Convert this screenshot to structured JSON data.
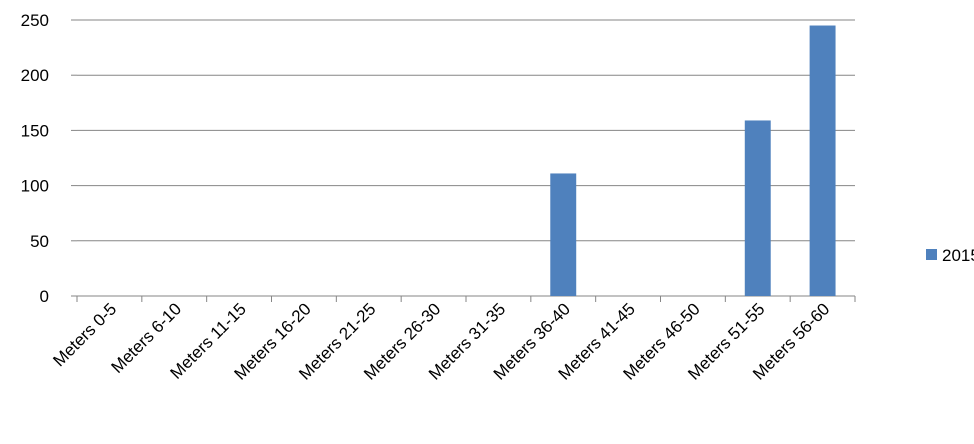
{
  "chart_data": {
    "type": "bar",
    "categories": [
      "Meters  0-5",
      "Meters  6-10",
      "Meters  11-15",
      "Meters  16-20",
      "Meters  21-25",
      "Meters 26-30",
      "Meters 31-35",
      "Meters 36-40",
      "Meters 41-45",
      "Meters 46-50",
      "Meters 51-55",
      "Meters 56-60"
    ],
    "series": [
      {
        "name": "2015",
        "color": "#4F81BD",
        "values": [
          0,
          0,
          0,
          0,
          0,
          0,
          0,
          111,
          0,
          0,
          159,
          245
        ]
      }
    ],
    "yticks": [
      0,
      50,
      100,
      150,
      200,
      250
    ],
    "ylim": [
      0,
      250
    ],
    "grid": true,
    "legend": "right"
  }
}
